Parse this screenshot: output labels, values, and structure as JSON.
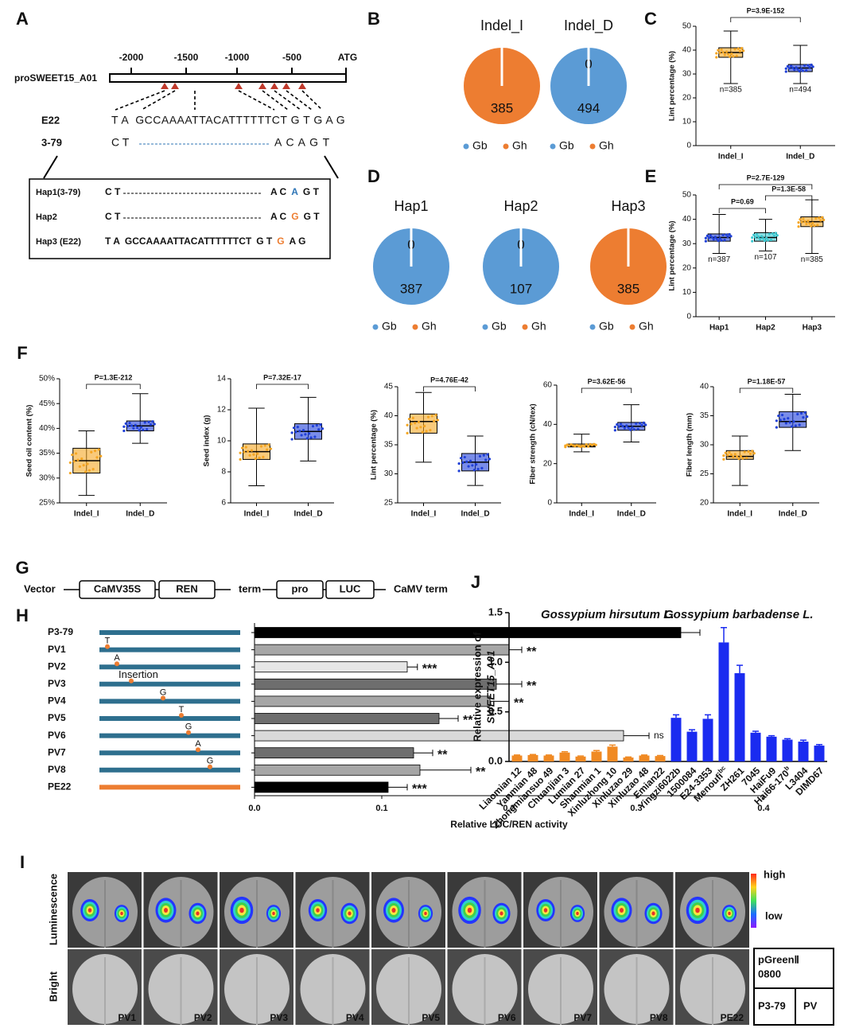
{
  "panel_labels": [
    "A",
    "B",
    "C",
    "D",
    "E",
    "F",
    "G",
    "H",
    "I",
    "J"
  ],
  "promoter": {
    "name": "proSWEET15_A01",
    "ticks": [
      -2000,
      -1500,
      -1000,
      -500
    ],
    "end_label": "ATG",
    "e22": {
      "label": "E22",
      "sequence": "T A  GCCAAAATTACATTTTTTCT G T G A G"
    },
    "line_3_79": {
      "label": "3-79",
      "start": "C T",
      "end": "A C A G T"
    },
    "haplotypes": [
      {
        "label": "Hap1(3-79)",
        "parts": [
          "C T",
          "A C",
          "A",
          "G T"
        ]
      },
      {
        "label": "Hap2",
        "parts": [
          "C T",
          "A C",
          "G",
          "G T"
        ]
      },
      {
        "label": "Hap3 (E22)",
        "parts": [
          "T A",
          "GCCAAAATTACATTTTTTCT",
          "G T",
          "G",
          "A G"
        ]
      }
    ]
  },
  "chart_data": [
    {
      "type": "pie",
      "pies": [
        {
          "title": "Indel_I",
          "values": [
            0,
            385
          ]
        },
        {
          "title": "Indel_D",
          "values": [
            494,
            0
          ]
        }
      ],
      "labels": [
        "Gb",
        "Gh"
      ],
      "colors": [
        "#5b9bd5",
        "#ed7d31"
      ]
    },
    {
      "type": "box",
      "categories": [
        "Indel_I",
        "Indel_D"
      ],
      "boxes": [
        {
          "min": 26,
          "q1": 37,
          "median": 39,
          "q3": 41,
          "max": 48
        },
        {
          "min": 26,
          "q1": 31,
          "median": 32.5,
          "q3": 34,
          "max": 42
        }
      ],
      "colors": [
        "#f5a623",
        "#2040d8"
      ],
      "ylabel": "Lint percentage (%)",
      "ylim": [
        0,
        50
      ],
      "yticks": [
        0,
        10,
        20,
        30,
        40,
        50
      ],
      "annotations": [
        "P=3.9E-152"
      ],
      "n_labels": [
        "n=385",
        "n=494"
      ]
    },
    {
      "type": "pie",
      "pies": [
        {
          "title": "Hap1",
          "values": [
            387,
            0
          ]
        },
        {
          "title": "Hap2",
          "values": [
            107,
            0
          ]
        },
        {
          "title": "Hap3",
          "values": [
            0,
            385
          ]
        }
      ],
      "labels": [
        "Gb",
        "Gh"
      ],
      "colors": [
        "#5b9bd5",
        "#ed7d31"
      ]
    },
    {
      "type": "box",
      "categories": [
        "Hap1",
        "Hap2",
        "Hap3"
      ],
      "boxes": [
        {
          "min": 26,
          "q1": 31,
          "median": 32.5,
          "q3": 34,
          "max": 42
        },
        {
          "min": 27,
          "q1": 31,
          "median": 32.5,
          "q3": 34.5,
          "max": 40
        },
        {
          "min": 26,
          "q1": 37,
          "median": 39,
          "q3": 41,
          "max": 48
        }
      ],
      "colors": [
        "#2040d8",
        "#3cc8d0",
        "#f5a623"
      ],
      "ylabel": "Lint percentage (%)",
      "ylim": [
        0,
        50
      ],
      "yticks": [
        0,
        10,
        20,
        30,
        40,
        50
      ],
      "annotations": [
        "P=2.7E-129",
        "P=0.69",
        "P=1.3E-58"
      ],
      "n_labels": [
        "n=387",
        "n=107",
        "n=385"
      ]
    },
    {
      "type": "box",
      "categories": [
        "Indel_I",
        "Indel_D"
      ],
      "boxes": [
        {
          "min": 26.5,
          "q1": 31,
          "median": 33.5,
          "q3": 36,
          "max": 39.5
        },
        {
          "min": 37,
          "q1": 39.5,
          "median": 40.5,
          "q3": 41.5,
          "max": 47
        }
      ],
      "colors": [
        "#f5a623",
        "#2040d8"
      ],
      "ylabel": "Seed oil content (%)",
      "ylim": [
        25,
        50
      ],
      "yticks": [
        {
          "value": 25,
          "label": "25%"
        },
        {
          "value": 30,
          "label": "30%"
        },
        {
          "value": 35,
          "label": "35%"
        },
        {
          "value": 40,
          "label": "40%"
        },
        {
          "value": 45,
          "label": "45%"
        },
        {
          "value": 50,
          "label": "50%"
        }
      ],
      "annotations": [
        "P=1.3E-212"
      ]
    },
    {
      "type": "box",
      "categories": [
        "Indel_I",
        "Indel_D"
      ],
      "boxes": [
        {
          "min": 7.1,
          "q1": 8.8,
          "median": 9.3,
          "q3": 9.8,
          "max": 12.1
        },
        {
          "min": 8.7,
          "q1": 10.1,
          "median": 10.6,
          "q3": 11.1,
          "max": 12.8
        }
      ],
      "colors": [
        "#f5a623",
        "#2040d8"
      ],
      "ylabel": "Seed index (g)",
      "ylim": [
        6,
        14
      ],
      "yticks": [
        6,
        8,
        10,
        12,
        14
      ],
      "annotations": [
        "P=7.32E-17"
      ]
    },
    {
      "type": "box",
      "categories": [
        "Indel_I",
        "Indel_D"
      ],
      "boxes": [
        {
          "min": 32,
          "q1": 37,
          "median": 39,
          "q3": 40.3,
          "max": 44
        },
        {
          "min": 28,
          "q1": 30.5,
          "median": 32,
          "q3": 33.5,
          "max": 36.5
        }
      ],
      "colors": [
        "#f5a623",
        "#2040d8"
      ],
      "ylabel": "Lint percentage (%)",
      "ylim": [
        25,
        45
      ],
      "yticks": [
        25,
        30,
        35,
        40,
        45
      ],
      "annotations": [
        "P=4.76E-42"
      ]
    },
    {
      "type": "box",
      "categories": [
        "Indel_I",
        "Indel_D"
      ],
      "boxes": [
        {
          "min": 26,
          "q1": 28.5,
          "median": 29,
          "q3": 30,
          "max": 35
        },
        {
          "min": 31,
          "q1": 37,
          "median": 39,
          "q3": 41,
          "max": 50
        }
      ],
      "colors": [
        "#f5a623",
        "#2040d8"
      ],
      "ylabel": "Fiber strength (cN/tex)",
      "ylim": [
        0,
        60
      ],
      "yticks": [
        0,
        20,
        40,
        60
      ],
      "annotations": [
        "P=3.62E-56"
      ]
    },
    {
      "type": "box",
      "categories": [
        "Indel_I",
        "Indel_D"
      ],
      "boxes": [
        {
          "min": 23,
          "q1": 27.5,
          "median": 28,
          "q3": 29,
          "max": 31.5
        },
        {
          "min": 29,
          "q1": 33,
          "median": 34,
          "q3": 35.7,
          "max": 38.7
        }
      ],
      "colors": [
        "#f5a623",
        "#2040d8"
      ],
      "ylabel": "Fiber length (mm)",
      "ylim": [
        20,
        40
      ],
      "yticks": [
        20,
        25,
        30,
        35,
        40
      ],
      "annotations": [
        "P=1.18E-57"
      ]
    },
    {
      "type": "hbar",
      "categories": [
        "P3-79",
        "PV1",
        "PV2",
        "PV3",
        "PV4",
        "PV5",
        "PV6",
        "PV7",
        "PV8",
        "PE22"
      ],
      "values": [
        0.335,
        0.2,
        0.12,
        0.19,
        0.185,
        0.145,
        0.29,
        0.125,
        0.13,
        0.105
      ],
      "errors": [
        0.015,
        0.01,
        0.008,
        0.02,
        0.015,
        0.015,
        0.02,
        0.015,
        0.04,
        0.015
      ],
      "colors": [
        "#000000",
        "#a6a6a6",
        "#e6e6e6",
        "#6e6e6e",
        "#a6a6a6",
        "#6e6e6e",
        "#d9d9d9",
        "#6e6e6e",
        "#a6a6a6",
        "#000000"
      ],
      "significance": [
        null,
        "**",
        "***",
        "**",
        "**",
        "**",
        "ns",
        "**",
        "**",
        "***"
      ],
      "mutations": [
        null,
        "T",
        "A",
        "Insertion",
        "G",
        "T",
        "G",
        "A",
        "G",
        null
      ],
      "line_colors": [
        "#2e6f8e",
        "#2e6f8e",
        "#2e6f8e",
        "#2e6f8e",
        "#2e6f8e",
        "#2e6f8e",
        "#2e6f8e",
        "#2e6f8e",
        "#2e6f8e",
        "#ed7d31"
      ],
      "xlabel": "Relative LUC/REN activity",
      "xlim": [
        0,
        0.4
      ],
      "xticks": [
        {
          "value": 0,
          "label": "0.0"
        },
        0.1,
        0.2,
        0.3,
        0.4
      ]
    },
    {
      "type": "bar",
      "categories": [
        "Liaomian 12",
        "Yanmian 48",
        "Zhongmiansuo 49",
        "Chuanjian 3",
        "Lumian 27",
        "Shanmian 1",
        "Xinluzhong 10",
        "Xinluzao 29",
        "Xinluzao 48",
        "Emian22",
        "Yingzi6022b",
        "1500084",
        "E24-3353",
        "Menoufi",
        "ZH261",
        "7045",
        "HaiFu9",
        "Hai66-170",
        "L3404",
        "DIMD67"
      ],
      "category_superscripts": [
        null,
        null,
        null,
        null,
        null,
        null,
        null,
        null,
        null,
        null,
        null,
        null,
        null,
        "bc",
        null,
        null,
        null,
        "b",
        null,
        null
      ],
      "series": [
        {
          "name": "Gossypium hirsutum L.",
          "color": "#f08a24",
          "values": [
            0.06,
            0.065,
            0.06,
            0.09,
            0.05,
            0.1,
            0.15,
            0.04,
            0.06,
            0.055,
            null,
            null,
            null,
            null,
            null,
            null,
            null,
            null,
            null,
            null
          ],
          "errors": [
            0.005,
            0.005,
            0.005,
            0.008,
            0.005,
            0.01,
            0.015,
            0.005,
            0.005,
            0.005,
            null,
            null,
            null,
            null,
            null,
            null,
            null,
            null,
            null,
            null
          ]
        },
        {
          "name": "Gossypium barbadense L.",
          "color": "#1a2bf0",
          "values": [
            null,
            null,
            null,
            null,
            null,
            null,
            null,
            null,
            null,
            null,
            0.44,
            0.3,
            0.43,
            1.2,
            0.89,
            0.29,
            0.25,
            0.22,
            0.2,
            0.16
          ],
          "errors": [
            null,
            null,
            null,
            null,
            null,
            null,
            null,
            null,
            null,
            null,
            0.03,
            0.02,
            0.04,
            0.15,
            0.08,
            0.015,
            0.01,
            0.01,
            0.015,
            0.01
          ]
        }
      ],
      "ylabel": [
        "Relative expression of",
        "SWEET15_A01"
      ],
      "ylim": [
        0,
        1.5
      ],
      "yticks": [
        {
          "value": 0,
          "label": "0.0"
        },
        {
          "value": 0.5,
          "label": "0.5"
        },
        {
          "value": 1,
          "label": "1.0"
        },
        {
          "value": 1.5,
          "label": "1.5"
        }
      ]
    }
  ],
  "vector": {
    "label": "Vector",
    "elements": [
      "CaMV35S",
      "REN",
      "term",
      "pro",
      "LUC",
      "CaMV term"
    ]
  },
  "imaging": {
    "row_labels": [
      "Luminescence",
      "Bright"
    ],
    "leaves": [
      "PV1",
      "PV2",
      "PV3",
      "PV4",
      "PV5",
      "PV6",
      "PV7",
      "PV8",
      "PE22"
    ],
    "scale": [
      "high",
      "low"
    ],
    "legend": {
      "vector": [
        "pGreenⅡ",
        "0800"
      ],
      "left": "P3-79",
      "right": "PV"
    }
  }
}
